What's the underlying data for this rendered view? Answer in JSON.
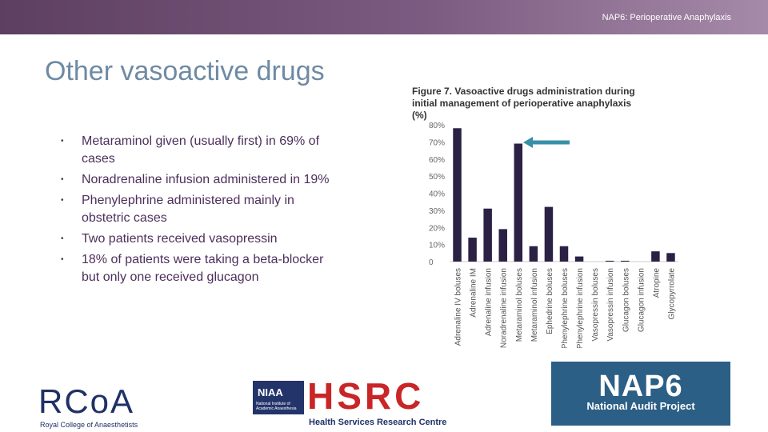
{
  "header": {
    "title": "NAP6: Perioperative Anaphylaxis"
  },
  "slide": {
    "title": "Other vasoactive drugs",
    "bullets": [
      "Metaraminol given (usually first) in 69% of cases",
      "Noradrenaline infusion administered in 19%",
      "Phenylephrine administered mainly in obstetric cases",
      "Two patients received vasopressin",
      "18% of patients were taking a beta-blocker but only one received glucagon"
    ]
  },
  "chart_data": {
    "type": "bar",
    "title": "Figure 7. Vasoactive drugs administration during initial management of perioperative anaphylaxis (%)",
    "categories": [
      "Adrenaline IV boluses",
      "Adrenaline IM",
      "Adrenaline infusion",
      "Noradrenaline infusion",
      "Metaraminol boluses",
      "Metaraminol infusion",
      "Ephedrine boluses",
      "Phenylephrine boluses",
      "Phenylephrine infusion",
      "Vasopressin boluses",
      "Vasopressin infusion",
      "Glucagon boluses",
      "Glucagon infusion",
      "Atropine",
      "Glycopyrrolate"
    ],
    "values": [
      78,
      14,
      31,
      19,
      69,
      9,
      32,
      9,
      3,
      0,
      0.5,
      0.5,
      0,
      6,
      5
    ],
    "yticks": [
      "80%",
      "70%",
      "60%",
      "50%",
      "40%",
      "30%",
      "20%",
      "10%",
      "0"
    ],
    "ylim": [
      0,
      80
    ],
    "bar_color": "#2b2144",
    "grid": false
  },
  "annotation": {
    "arrow_color": "#3a8fa8"
  },
  "logos": {
    "rcoa": {
      "letters": "RCoA",
      "subtitle": "Royal College of Anaesthetists"
    },
    "niaa": {
      "text": "NIAA",
      "subtitle": "National Institute of Academic Anaesthesia"
    },
    "hsrc": {
      "letters": "HSRC",
      "subtitle": "Health Services Research Centre"
    },
    "nap6": {
      "big": "NAP6",
      "subtitle": "National Audit Project"
    }
  }
}
